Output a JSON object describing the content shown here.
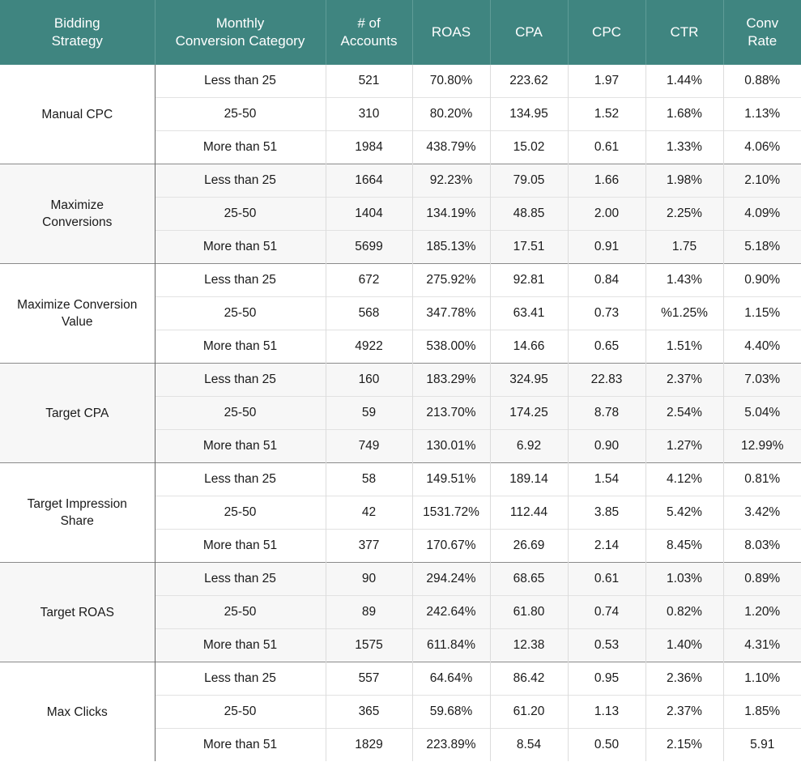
{
  "headers": [
    "Bidding\nStrategy",
    "Monthly\nConversion Category",
    "# of\nAccounts",
    "ROAS",
    "CPA",
    "CPC",
    "CTR",
    "Conv\nRate"
  ],
  "colors": {
    "header_bg": "#3f8580",
    "header_text": "#ffffff",
    "alt_row_bg": "#f7f7f7"
  },
  "groups": [
    {
      "strategy": "Manual CPC",
      "rows": [
        [
          "Less than 25",
          "521",
          "70.80%",
          "223.62",
          "1.97",
          "1.44%",
          "0.88%"
        ],
        [
          "25-50",
          "310",
          "80.20%",
          "134.95",
          "1.52",
          "1.68%",
          "1.13%"
        ],
        [
          "More than 51",
          "1984",
          "438.79%",
          "15.02",
          "0.61",
          "1.33%",
          "4.06%"
        ]
      ]
    },
    {
      "strategy": "Maximize\nConversions",
      "rows": [
        [
          "Less than 25",
          "1664",
          "92.23%",
          "79.05",
          "1.66",
          "1.98%",
          "2.10%"
        ],
        [
          "25-50",
          "1404",
          "134.19%",
          "48.85",
          "2.00",
          "2.25%",
          "4.09%"
        ],
        [
          "More than 51",
          "5699",
          "185.13%",
          "17.51",
          "0.91",
          "1.75",
          "5.18%"
        ]
      ]
    },
    {
      "strategy": "Maximize Conversion\nValue",
      "rows": [
        [
          "Less than 25",
          "672",
          "275.92%",
          "92.81",
          "0.84",
          "1.43%",
          "0.90%"
        ],
        [
          "25-50",
          "568",
          "347.78%",
          "63.41",
          "0.73",
          "%1.25%",
          "1.15%"
        ],
        [
          "More than 51",
          "4922",
          "538.00%",
          "14.66",
          "0.65",
          "1.51%",
          "4.40%"
        ]
      ]
    },
    {
      "strategy": "Target CPA",
      "rows": [
        [
          "Less than 25",
          "160",
          "183.29%",
          "324.95",
          "22.83",
          "2.37%",
          "7.03%"
        ],
        [
          "25-50",
          "59",
          "213.70%",
          "174.25",
          "8.78",
          "2.54%",
          "5.04%"
        ],
        [
          "More than 51",
          "749",
          "130.01%",
          "6.92",
          "0.90",
          "1.27%",
          "12.99%"
        ]
      ]
    },
    {
      "strategy": "Target Impression\nShare",
      "rows": [
        [
          "Less than 25",
          "58",
          "149.51%",
          "189.14",
          "1.54",
          "4.12%",
          "0.81%"
        ],
        [
          "25-50",
          "42",
          "1531.72%",
          "112.44",
          "3.85",
          "5.42%",
          "3.42%"
        ],
        [
          "More than 51",
          "377",
          "170.67%",
          "26.69",
          "2.14",
          "8.45%",
          "8.03%"
        ]
      ]
    },
    {
      "strategy": "Target ROAS",
      "rows": [
        [
          "Less than 25",
          "90",
          "294.24%",
          "68.65",
          "0.61",
          "1.03%",
          "0.89%"
        ],
        [
          "25-50",
          "89",
          "242.64%",
          "61.80",
          "0.74",
          "0.82%",
          "1.20%"
        ],
        [
          "More than 51",
          "1575",
          "611.84%",
          "12.38",
          "0.53",
          "1.40%",
          "4.31%"
        ]
      ]
    },
    {
      "strategy": "Max Clicks",
      "rows": [
        [
          "Less than 25",
          "557",
          "64.64%",
          "86.42",
          "0.95",
          "2.36%",
          "1.10%"
        ],
        [
          "25-50",
          "365",
          "59.68%",
          "61.20",
          "1.13",
          "2.37%",
          "1.85%"
        ],
        [
          "More than 51",
          "1829",
          "223.89%",
          "8.54",
          "0.50",
          "2.15%",
          "5.91"
        ]
      ]
    }
  ]
}
